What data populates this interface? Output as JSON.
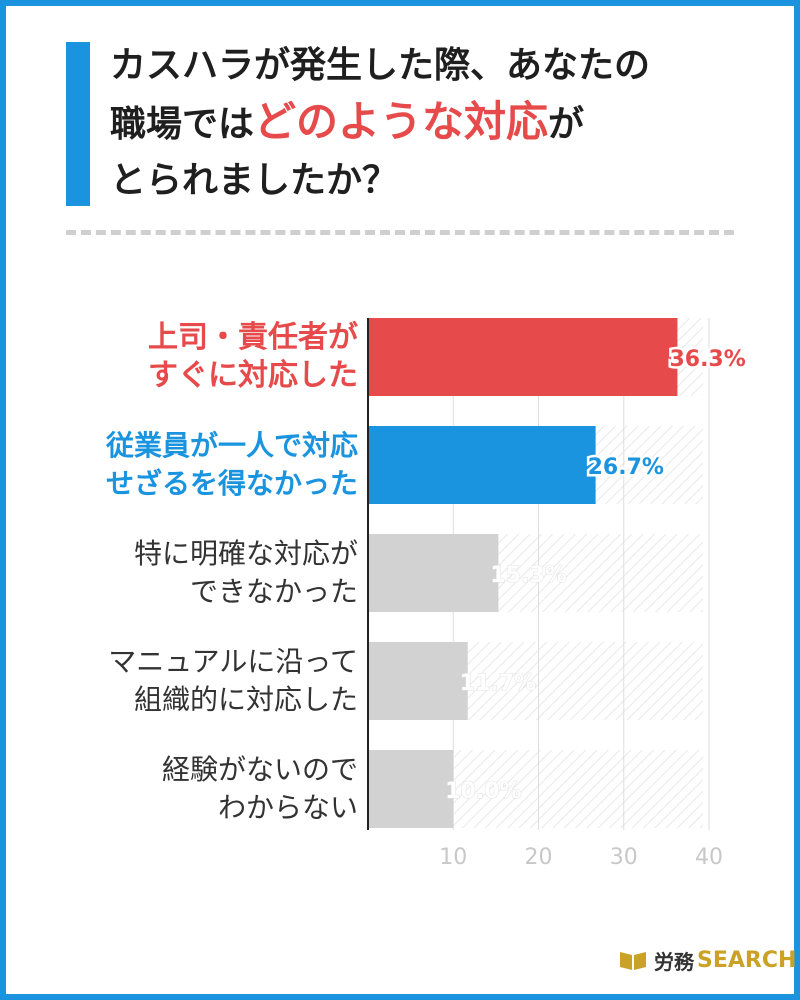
{
  "title": {
    "line1": "カスハラが発生した際、あなたの",
    "line2_pre": "職場では",
    "line2_highlight": "どのような対応",
    "line2_post": "が",
    "line3": "とられましたか？"
  },
  "colors": {
    "accent_blue": "#1b94e0",
    "accent_red": "#e64a4a",
    "bar_gray": "#d2d2d2"
  },
  "logo": {
    "jp": "労務",
    "en": "SEARCH"
  },
  "chart_data": {
    "type": "bar",
    "orientation": "horizontal",
    "categories": [
      [
        "上司・責任者が",
        "すぐに対応した"
      ],
      [
        "従業員が一人で対応",
        "せざるを得なかった"
      ],
      [
        "特に明確な対応が",
        "できなかった"
      ],
      [
        "マニュアルに沿って",
        "組織的に対応した"
      ],
      [
        "経験がないので",
        "わからない"
      ]
    ],
    "values": [
      36.3,
      26.7,
      15.3,
      11.7,
      10.0
    ],
    "value_labels": [
      "36.3%",
      "26.7%",
      "15.3%",
      "11.7%",
      "10.0%"
    ],
    "bar_colors": [
      "#e64a4a",
      "#1b94e0",
      "#d2d2d2",
      "#d2d2d2",
      "#d2d2d2"
    ],
    "label_colors": [
      "#e64a4a",
      "#1b94e0",
      "#333333",
      "#333333",
      "#333333"
    ],
    "xlim": [
      0,
      40
    ],
    "xticks": [
      10,
      20,
      30,
      40
    ],
    "grid": true
  }
}
